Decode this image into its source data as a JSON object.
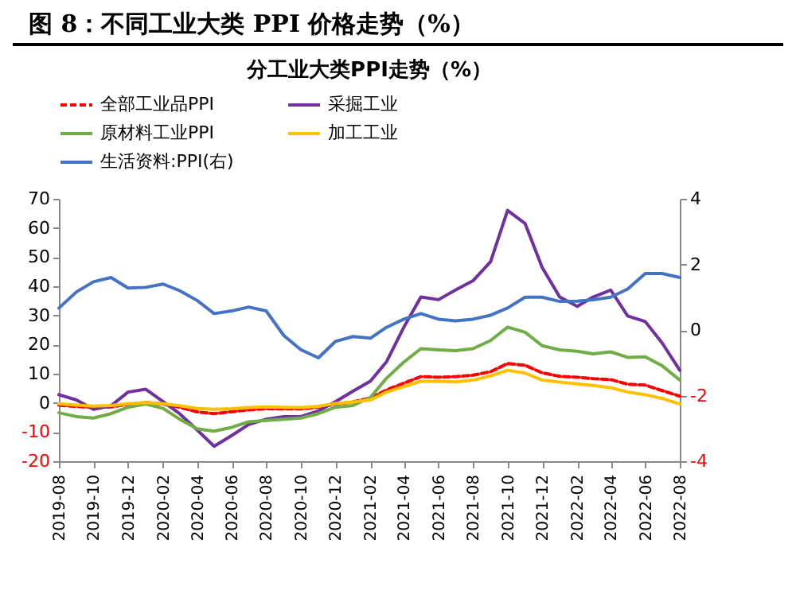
{
  "chart_data": {
    "type": "line",
    "title": "图 8：不同工业大类 PPI 价格走势（%）",
    "subtitle": "分工业大类PPI走势（%）",
    "x": [
      "2019-08",
      "2019-09",
      "2019-10",
      "2019-11",
      "2019-12",
      "2020-01",
      "2020-02",
      "2020-03",
      "2020-04",
      "2020-05",
      "2020-06",
      "2020-07",
      "2020-08",
      "2020-09",
      "2020-10",
      "2020-11",
      "2020-12",
      "2021-01",
      "2021-02",
      "2021-03",
      "2021-04",
      "2021-05",
      "2021-06",
      "2021-07",
      "2021-08",
      "2021-09",
      "2021-10",
      "2021-11",
      "2021-12",
      "2022-01",
      "2022-02",
      "2022-03",
      "2022-04",
      "2022-05",
      "2022-06",
      "2022-07",
      "2022-08"
    ],
    "xlim": [
      "2019-08",
      "2022-08"
    ],
    "xticks": [
      "2019-08",
      "2019-10",
      "2019-12",
      "2020-02",
      "2020-04",
      "2020-06",
      "2020-08",
      "2020-10",
      "2020-12",
      "2021-02",
      "2021-04",
      "2021-06",
      "2021-08",
      "2021-10",
      "2021-12",
      "2022-02",
      "2022-04",
      "2022-06",
      "2022-08"
    ],
    "ylim": [
      -20,
      70
    ],
    "yticks": [
      -20,
      -10,
      0,
      10,
      20,
      30,
      40,
      50,
      60,
      70
    ],
    "y2lim": [
      -4,
      4
    ],
    "y2ticks": [
      -4,
      -2,
      0,
      2,
      4
    ],
    "legend": "top",
    "grid": false,
    "series": [
      {
        "name": "全部工业品PPI",
        "color": "#ff0000",
        "line_style": "dashed",
        "values": [
          -0.8,
          -1.2,
          -1.6,
          -1.4,
          -0.5,
          0.1,
          -0.4,
          -1.5,
          -3.1,
          -3.7,
          -3.0,
          -2.4,
          -2.0,
          -2.1,
          -2.1,
          -1.5,
          -0.4,
          0.3,
          1.7,
          4.4,
          6.8,
          9.0,
          8.8,
          9.0,
          9.5,
          10.7,
          13.5,
          12.9,
          10.3,
          9.1,
          8.8,
          8.3,
          8.0,
          6.4,
          6.1,
          4.2,
          2.3
        ]
      },
      {
        "name": "采掘工业",
        "color": "#7030a0",
        "values": [
          2.8,
          1.0,
          -2.2,
          -1.0,
          3.7,
          4.7,
          0.4,
          -3.7,
          -9.3,
          -14.9,
          -11.2,
          -7.4,
          -5.6,
          -4.7,
          -4.7,
          -2.8,
          0.4,
          4.0,
          7.5,
          14.0,
          26.0,
          36.3,
          35.4,
          38.7,
          41.9,
          48.4,
          66.0,
          61.5,
          46.5,
          36.3,
          33.1,
          36.3,
          38.7,
          29.8,
          27.9,
          20.5,
          11.2
        ]
      },
      {
        "name": "原材料工业PPI",
        "color": "#70ad47",
        "values": [
          -3.4,
          -4.7,
          -5.2,
          -3.7,
          -1.5,
          -0.4,
          -1.9,
          -5.6,
          -8.9,
          -9.7,
          -8.4,
          -6.5,
          -6.0,
          -5.6,
          -5.2,
          -3.7,
          -1.5,
          -0.9,
          1.9,
          8.4,
          14.0,
          18.6,
          18.2,
          17.9,
          18.6,
          21.4,
          26.0,
          24.2,
          19.6,
          18.2,
          17.7,
          16.8,
          17.5,
          15.6,
          15.8,
          12.7,
          7.8
        ]
      },
      {
        "name": "加工工业",
        "color": "#ffc000",
        "values": [
          -0.3,
          -0.8,
          -1.1,
          -0.9,
          -0.3,
          0.1,
          -0.3,
          -1.0,
          -1.9,
          -2.2,
          -2.0,
          -1.6,
          -1.4,
          -1.5,
          -1.6,
          -1.2,
          -0.2,
          0.3,
          1.0,
          3.7,
          5.6,
          7.4,
          7.4,
          7.2,
          7.8,
          9.3,
          11.2,
          10.2,
          7.8,
          7.1,
          6.5,
          6.0,
          5.2,
          3.7,
          2.8,
          1.5,
          -0.4
        ]
      },
      {
        "name": "生活资料:PPI(右)",
        "color": "#4472c4",
        "axis": "y2",
        "values": [
          0.67,
          1.16,
          1.47,
          1.6,
          1.28,
          1.3,
          1.4,
          1.2,
          0.9,
          0.5,
          0.58,
          0.7,
          0.58,
          -0.17,
          -0.6,
          -0.85,
          -0.35,
          -0.2,
          -0.25,
          0.08,
          0.33,
          0.5,
          0.33,
          0.28,
          0.33,
          0.45,
          0.67,
          1.0,
          1.0,
          0.87,
          0.88,
          0.92,
          1.0,
          1.25,
          1.72,
          1.72,
          1.6
        ]
      }
    ]
  }
}
